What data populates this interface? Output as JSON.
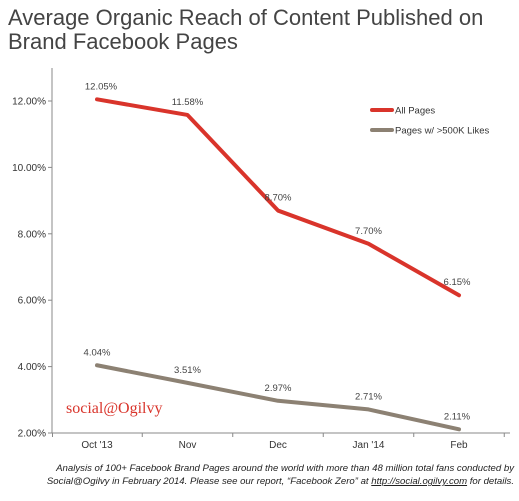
{
  "title_lines": [
    "Average Organic Reach of Content Published on",
    "Brand Facebook Pages"
  ],
  "brand": "social@Ogilvy",
  "footnote": {
    "text": "Analysis of 100+ Facebook Brand Pages around the world with more than 48 million total fans conducted by Social@Ogilvy in February 2014. Please see our report, “Facebook Zero” at ",
    "link": "http://social.ogilvy.com",
    "suffix": " for details."
  },
  "colors": {
    "all_pages": "#d9342b",
    "large_pages": "#8c8173",
    "axis": "#888888"
  },
  "chart_data": {
    "type": "line",
    "title": "Average Organic Reach of Content Published on Brand Facebook Pages",
    "categories": [
      "Oct '13",
      "Nov",
      "Dec",
      "Jan '14",
      "Feb"
    ],
    "ylim": [
      2,
      12
    ],
    "yticks": [
      2,
      4,
      6,
      8,
      10,
      12
    ],
    "ytick_labels": [
      "2.00%",
      "4.00%",
      "6.00%",
      "8.00%",
      "10.00%",
      "12.00%"
    ],
    "grid": false,
    "legend_position": "top-right",
    "series": [
      {
        "name": "All Pages",
        "color": "#d9342b",
        "values": [
          12.05,
          11.58,
          8.7,
          7.7,
          6.15
        ],
        "labels": [
          "12.05%",
          "11.58%",
          "8.70%",
          "7.70%",
          "6.15%"
        ]
      },
      {
        "name": "Pages w/ >500K Likes",
        "color": "#8c8173",
        "values": [
          4.04,
          3.51,
          2.97,
          2.71,
          2.11
        ],
        "labels": [
          "4.04%",
          "3.51%",
          "2.97%",
          "2.71%",
          "2.11%"
        ]
      }
    ]
  }
}
